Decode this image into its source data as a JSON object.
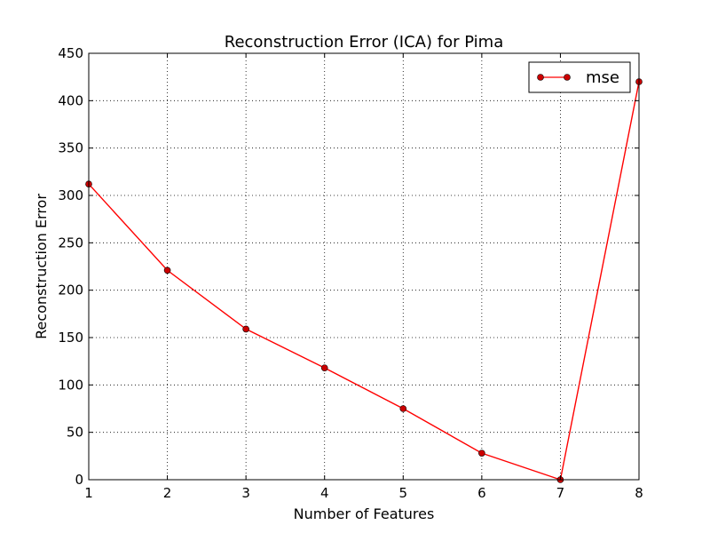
{
  "chart_data": {
    "type": "line",
    "title": "Reconstruction Error (ICA) for Pima",
    "xlabel": "Number of Features",
    "ylabel": "Reconstruction Error",
    "xlim": [
      1,
      8
    ],
    "ylim": [
      0,
      450
    ],
    "xticks": [
      "1",
      "2",
      "3",
      "4",
      "5",
      "6",
      "7",
      "8"
    ],
    "yticks": [
      "0",
      "50",
      "100",
      "150",
      "200",
      "250",
      "300",
      "350",
      "400",
      "450"
    ],
    "grid": true,
    "legend_position": "top-right",
    "series": [
      {
        "name": "mse",
        "color": "#ff0000",
        "marker_color": "#cc0000",
        "x": [
          1,
          2,
          3,
          4,
          5,
          6,
          7,
          8
        ],
        "y": [
          312,
          221,
          159,
          118,
          75,
          28,
          0,
          420
        ]
      }
    ]
  }
}
